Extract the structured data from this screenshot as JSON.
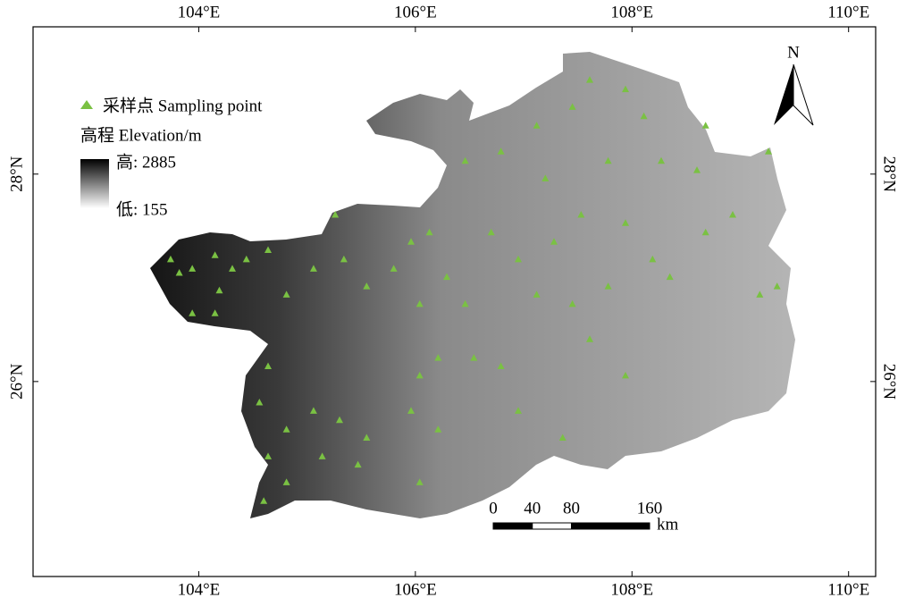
{
  "map": {
    "xlim": [
      102.47,
      110.25
    ],
    "ylim": [
      24.12,
      29.42
    ],
    "xticks": [
      {
        "value": 104,
        "label": "104°E"
      },
      {
        "value": 106,
        "label": "106°E"
      },
      {
        "value": 108,
        "label": "108°E"
      },
      {
        "value": 110,
        "label": "110°E"
      }
    ],
    "yticks": [
      {
        "value": 26,
        "label": "26°N"
      },
      {
        "value": 28,
        "label": "28°N"
      }
    ],
    "north": "N",
    "legend": {
      "points": "采样点 Sampling point",
      "elevation": "高程 Elevation/m",
      "high": "高: 2885",
      "low": "低: 155"
    },
    "point_color": "#7ac143",
    "scale_bar": {
      "ticks": [
        0,
        40,
        80,
        160
      ],
      "unit": "km"
    },
    "points": [
      [
        103.74,
        27.18
      ],
      [
        103.82,
        27.05
      ],
      [
        103.94,
        27.09
      ],
      [
        104.15,
        27.22
      ],
      [
        104.31,
        27.09
      ],
      [
        104.19,
        26.88
      ],
      [
        103.94,
        26.66
      ],
      [
        104.15,
        26.66
      ],
      [
        104.44,
        27.18
      ],
      [
        104.64,
        27.27
      ],
      [
        104.81,
        26.84
      ],
      [
        105.06,
        27.09
      ],
      [
        105.34,
        27.18
      ],
      [
        105.55,
        26.92
      ],
      [
        105.8,
        27.09
      ],
      [
        105.96,
        27.35
      ],
      [
        106.13,
        27.44
      ],
      [
        106.04,
        26.75
      ],
      [
        106.29,
        27.01
      ],
      [
        106.46,
        26.75
      ],
      [
        105.26,
        27.61
      ],
      [
        104.64,
        26.15
      ],
      [
        104.56,
        25.8
      ],
      [
        104.81,
        25.54
      ],
      [
        104.64,
        25.28
      ],
      [
        104.81,
        25.03
      ],
      [
        104.6,
        24.85
      ],
      [
        105.06,
        25.72
      ],
      [
        105.3,
        25.63
      ],
      [
        105.55,
        25.46
      ],
      [
        105.14,
        25.28
      ],
      [
        105.47,
        25.2
      ],
      [
        106.04,
        26.06
      ],
      [
        106.21,
        26.23
      ],
      [
        106.54,
        26.23
      ],
      [
        106.79,
        26.15
      ],
      [
        106.95,
        27.18
      ],
      [
        107.12,
        26.84
      ],
      [
        107.45,
        26.75
      ],
      [
        107.78,
        26.92
      ],
      [
        107.28,
        27.35
      ],
      [
        107.53,
        27.61
      ],
      [
        107.94,
        27.53
      ],
      [
        108.19,
        27.18
      ],
      [
        108.35,
        27.01
      ],
      [
        108.68,
        27.44
      ],
      [
        108.93,
        27.61
      ],
      [
        109.18,
        26.84
      ],
      [
        109.34,
        26.92
      ],
      [
        107.45,
        28.65
      ],
      [
        107.61,
        28.91
      ],
      [
        107.94,
        28.82
      ],
      [
        108.11,
        28.56
      ],
      [
        107.12,
        28.47
      ],
      [
        106.79,
        28.22
      ],
      [
        106.46,
        28.13
      ],
      [
        107.2,
        27.96
      ],
      [
        107.78,
        28.13
      ],
      [
        108.27,
        28.13
      ],
      [
        108.6,
        28.04
      ],
      [
        109.26,
        28.22
      ],
      [
        108.68,
        28.47
      ],
      [
        107.61,
        26.41
      ],
      [
        107.94,
        26.06
      ],
      [
        106.95,
        25.72
      ],
      [
        107.36,
        25.46
      ],
      [
        106.04,
        25.03
      ],
      [
        106.21,
        25.54
      ],
      [
        105.96,
        25.72
      ],
      [
        106.7,
        27.44
      ]
    ]
  }
}
